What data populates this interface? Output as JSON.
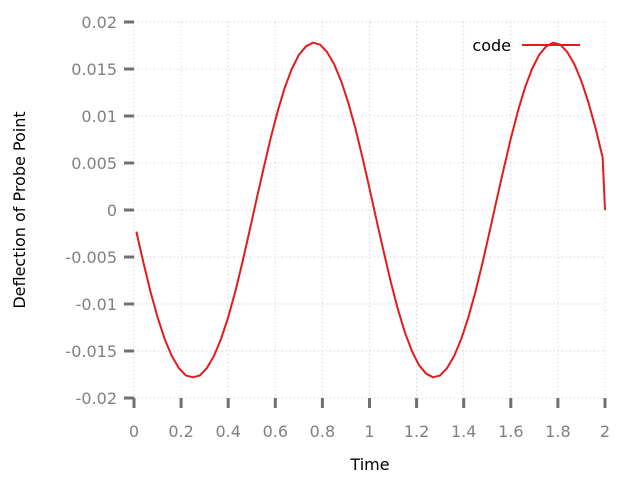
{
  "chart_data": {
    "type": "line",
    "xlabel": "Time",
    "ylabel": "Deflection of Probe Point",
    "xlim": [
      0,
      2
    ],
    "ylim": [
      -0.02,
      0.02
    ],
    "xticks": [
      0,
      0.2,
      0.4,
      0.6,
      0.8,
      1,
      1.2,
      1.4,
      1.6,
      1.8,
      2
    ],
    "xtick_labels": [
      "0",
      "0.2",
      "0.4",
      "0.6",
      "0.8",
      "1",
      "1.2",
      "1.4",
      "1.6",
      "1.8",
      "2"
    ],
    "yticks": [
      -0.02,
      -0.015,
      -0.01,
      -0.005,
      0,
      0.005,
      0.01,
      0.015,
      0.02
    ],
    "ytick_labels": [
      "-0.02",
      "-0.015",
      "-0.01",
      "-0.005",
      "0",
      "0.005",
      "0.01",
      "0.015",
      "0.02"
    ],
    "grid": true,
    "legend_position": "top-right",
    "series": [
      {
        "name": "code",
        "color": "#e41a1c",
        "x": [
          0.01,
          0.04,
          0.07,
          0.1,
          0.13,
          0.16,
          0.19,
          0.22,
          0.25,
          0.28,
          0.31,
          0.34,
          0.37,
          0.4,
          0.43,
          0.46,
          0.49,
          0.52,
          0.55,
          0.58,
          0.61,
          0.64,
          0.67,
          0.7,
          0.73,
          0.76,
          0.79,
          0.82,
          0.85,
          0.88,
          0.91,
          0.94,
          0.97,
          1.0,
          1.03,
          1.06,
          1.09,
          1.12,
          1.15,
          1.18,
          1.21,
          1.24,
          1.27,
          1.3,
          1.33,
          1.36,
          1.39,
          1.42,
          1.45,
          1.48,
          1.51,
          1.54,
          1.57,
          1.6,
          1.63,
          1.66,
          1.69,
          1.72,
          1.75,
          1.78,
          1.81,
          1.84,
          1.87,
          1.9,
          1.93,
          1.96,
          1.99,
          2.0
        ],
        "y": [
          -0.0023,
          -0.0056,
          -0.0087,
          -0.0114,
          -0.0137,
          -0.0155,
          -0.0168,
          -0.0176,
          -0.0178,
          -0.0176,
          -0.0168,
          -0.0155,
          -0.0137,
          -0.0114,
          -0.0087,
          -0.0056,
          -0.0023,
          0.0011,
          0.0044,
          0.0076,
          0.0105,
          0.013,
          0.015,
          0.0165,
          0.0174,
          0.0178,
          0.0176,
          0.0168,
          0.0155,
          0.0137,
          0.0114,
          0.0087,
          0.0056,
          0.0023,
          -0.0011,
          -0.0044,
          -0.0076,
          -0.0105,
          -0.013,
          -0.015,
          -0.0165,
          -0.0174,
          -0.0178,
          -0.0176,
          -0.0168,
          -0.0155,
          -0.0137,
          -0.0114,
          -0.0087,
          -0.0056,
          -0.0023,
          0.0011,
          0.0044,
          0.0076,
          0.0105,
          0.013,
          0.015,
          0.0165,
          0.0174,
          0.0178,
          0.0176,
          0.0168,
          0.0155,
          0.0137,
          0.0114,
          0.0087,
          0.0056,
          0.0
        ]
      }
    ]
  }
}
